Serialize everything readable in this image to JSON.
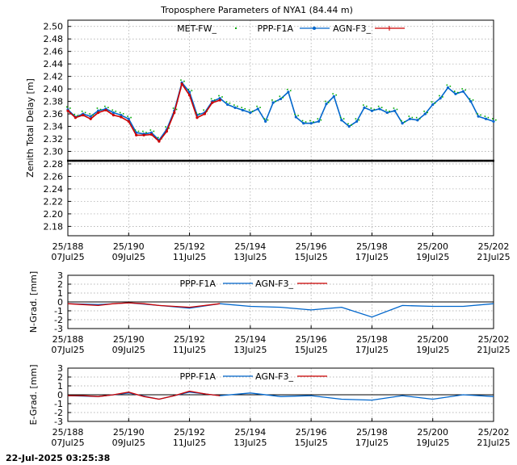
{
  "title": "Troposphere Parameters of NYA1 (84.44 m)",
  "timestamp": "22-Jul-2025 03:25:38",
  "colors": {
    "met": "#00aa00",
    "ppp": "#0066cc",
    "agn": "#cc0000",
    "black": "#000000",
    "grid": "#a0a0a0"
  },
  "x_ticks": [
    {
      "day": 188,
      "top": "25/188",
      "bottom": "07Jul25"
    },
    {
      "day": 190,
      "top": "25/190",
      "bottom": "09Jul25"
    },
    {
      "day": 192,
      "top": "25/192",
      "bottom": "11Jul25"
    },
    {
      "day": 194,
      "top": "25/194",
      "bottom": "13Jul25"
    },
    {
      "day": 196,
      "top": "25/196",
      "bottom": "15Jul25"
    },
    {
      "day": 198,
      "top": "25/198",
      "bottom": "17Jul25"
    },
    {
      "day": 200,
      "top": "25/200",
      "bottom": "19Jul25"
    },
    {
      "day": 202,
      "top": "25/202",
      "bottom": "21Jul25"
    }
  ],
  "chart_data": [
    {
      "type": "line",
      "ylabel": "Zenith Total Delay [m]",
      "xlim": [
        188,
        202
      ],
      "ylim": [
        2.165,
        2.51
      ],
      "yticks": [
        2.18,
        2.2,
        2.22,
        2.24,
        2.26,
        2.28,
        2.3,
        2.32,
        2.34,
        2.36,
        2.38,
        2.4,
        2.42,
        2.44,
        2.46,
        2.48,
        2.5
      ],
      "grid": true,
      "legend": "top",
      "series": [
        {
          "name": "MET-FW_",
          "style": "points",
          "color": "#00aa00",
          "const": 2.285,
          "x": [
            188.0,
            202.0
          ],
          "values": [
            2.285,
            2.285
          ]
        },
        {
          "name": "PPP-F1A",
          "style": "line",
          "color": "#0066cc",
          "x": [
            188.0,
            188.25,
            188.5,
            188.75,
            189.0,
            189.25,
            189.5,
            189.75,
            190.0,
            190.25,
            190.5,
            190.75,
            191.0,
            191.25,
            191.5,
            191.75,
            192.0,
            192.25,
            192.5,
            192.75,
            193.0,
            193.25,
            193.5,
            193.75,
            194.0,
            194.25,
            194.5,
            194.75,
            195.0,
            195.25,
            195.5,
            195.75,
            196.0,
            196.25,
            196.5,
            196.75,
            197.0,
            197.25,
            197.5,
            197.75,
            198.0,
            198.25,
            198.5,
            198.75,
            199.0,
            199.25,
            199.5,
            199.75,
            200.0,
            200.25,
            200.5,
            200.75,
            201.0,
            201.25,
            201.5,
            201.75,
            202.0
          ],
          "values": [
            2.367,
            2.355,
            2.36,
            2.356,
            2.365,
            2.368,
            2.362,
            2.358,
            2.352,
            2.33,
            2.328,
            2.33,
            2.318,
            2.335,
            2.365,
            2.41,
            2.395,
            2.358,
            2.362,
            2.38,
            2.385,
            2.375,
            2.37,
            2.366,
            2.362,
            2.368,
            2.348,
            2.378,
            2.384,
            2.395,
            2.355,
            2.345,
            2.345,
            2.348,
            2.376,
            2.388,
            2.35,
            2.34,
            2.348,
            2.37,
            2.365,
            2.368,
            2.362,
            2.365,
            2.345,
            2.352,
            2.35,
            2.36,
            2.375,
            2.385,
            2.402,
            2.392,
            2.396,
            2.38,
            2.356,
            2.352,
            2.348
          ]
        },
        {
          "name": "AGN-F3_",
          "style": "line",
          "color": "#cc0000",
          "x": [
            188.0,
            188.25,
            188.5,
            188.75,
            189.0,
            189.25,
            189.5,
            189.75,
            190.0,
            190.25,
            190.5,
            190.75,
            191.0,
            191.25,
            191.5,
            191.75,
            192.0,
            192.25,
            192.5,
            192.75,
            193.0
          ],
          "values": [
            2.365,
            2.354,
            2.358,
            2.352,
            2.362,
            2.366,
            2.358,
            2.355,
            2.348,
            2.326,
            2.326,
            2.327,
            2.316,
            2.332,
            2.362,
            2.408,
            2.39,
            2.354,
            2.36,
            2.378,
            2.382
          ]
        }
      ]
    },
    {
      "type": "line",
      "ylabel": "N-Grad. [mm]",
      "xlim": [
        188,
        202
      ],
      "ylim": [
        -3,
        3
      ],
      "yticks": [
        -3,
        -2,
        -1,
        0,
        1,
        2,
        3
      ],
      "grid": true,
      "legend": "top",
      "series": [
        {
          "name": "PPP-F1A",
          "color": "#0066cc",
          "x": [
            188,
            189,
            190,
            191,
            192,
            193,
            194,
            195,
            196,
            197,
            198,
            199,
            200,
            201,
            202
          ],
          "values": [
            -0.2,
            -0.3,
            -0.1,
            -0.4,
            -0.7,
            -0.2,
            -0.5,
            -0.6,
            -0.9,
            -0.6,
            -1.7,
            -0.4,
            -0.5,
            -0.5,
            -0.2
          ]
        },
        {
          "name": "AGN-F3_",
          "color": "#cc0000",
          "x": [
            188,
            188.5,
            189,
            189.5,
            190,
            190.5,
            191,
            191.5,
            192,
            192.5,
            193
          ],
          "values": [
            -0.2,
            -0.3,
            -0.4,
            -0.2,
            -0.1,
            -0.2,
            -0.4,
            -0.5,
            -0.6,
            -0.4,
            -0.2
          ]
        }
      ]
    },
    {
      "type": "line",
      "ylabel": "E-Grad. [mm]",
      "xlim": [
        188,
        202
      ],
      "ylim": [
        -3,
        3
      ],
      "yticks": [
        -3,
        -2,
        -1,
        0,
        1,
        2,
        3
      ],
      "grid": true,
      "legend": "top",
      "series": [
        {
          "name": "PPP-F1A",
          "color": "#0066cc",
          "x": [
            188,
            189,
            190,
            191,
            192,
            193,
            194,
            195,
            196,
            197,
            198,
            199,
            200,
            201,
            202
          ],
          "values": [
            -0.1,
            -0.2,
            0.2,
            -0.5,
            0.3,
            -0.1,
            0.2,
            -0.2,
            -0.1,
            -0.5,
            -0.6,
            -0.1,
            -0.5,
            0.0,
            -0.2
          ]
        },
        {
          "name": "AGN-F3_",
          "color": "#cc0000",
          "x": [
            188,
            188.5,
            189,
            189.5,
            190,
            190.5,
            191,
            191.5,
            192,
            192.5,
            193
          ],
          "values": [
            -0.1,
            -0.1,
            -0.2,
            0.0,
            0.3,
            -0.2,
            -0.5,
            -0.1,
            0.4,
            0.1,
            -0.1
          ]
        }
      ]
    }
  ]
}
